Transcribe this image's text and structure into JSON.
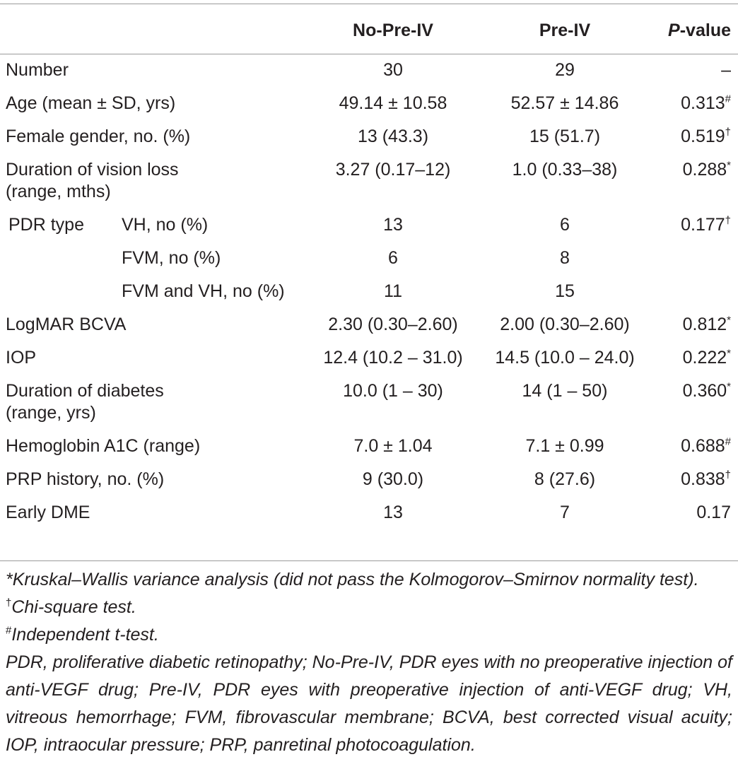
{
  "table": {
    "headers": {
      "col1": "No-Pre-IV",
      "col2": "Pre-IV",
      "col3_italic": "P",
      "col3_rest": "-value"
    },
    "rows": [
      {
        "label": "Number",
        "label2": "",
        "c1": "30",
        "c2": "29",
        "p": "–",
        "sup": ""
      },
      {
        "label": "Age (mean ± SD, yrs)",
        "label2": "",
        "c1": "49.14 ± 10.58",
        "c2": "52.57 ± 14.86",
        "p": "0.313",
        "sup": "#"
      },
      {
        "label": "Female gender, no. (%)",
        "label2": "",
        "c1": "13 (43.3)",
        "c2": "15 (51.7)",
        "p": "0.519",
        "sup": "†"
      },
      {
        "label": "Duration of vision loss",
        "label2": "(range, mths)",
        "c1": "3.27 (0.17–12)",
        "c2": "1.0 (0.33–38)",
        "p": "0.288",
        "sup": "*"
      },
      {
        "label": "PDR type",
        "sublabel": "VH, no (%)",
        "c1": "13",
        "c2": "6",
        "p": "0.177",
        "sup": "†"
      },
      {
        "label": "",
        "sublabel": "FVM, no (%)",
        "c1": "6",
        "c2": "8",
        "p": "",
        "sup": ""
      },
      {
        "label": "",
        "sublabel": "FVM and VH, no (%)",
        "c1": "11",
        "c2": "15",
        "p": "",
        "sup": ""
      },
      {
        "label": "LogMAR BCVA",
        "label2": "",
        "c1": "2.30 (0.30–2.60)",
        "c2": "2.00 (0.30–2.60)",
        "p": "0.812",
        "sup": "*"
      },
      {
        "label": "IOP",
        "label2": "",
        "c1": "12.4 (10.2 – 31.0)",
        "c2": "14.5 (10.0 – 24.0)",
        "p": "0.222",
        "sup": "*"
      },
      {
        "label": "Duration of diabetes",
        "label2": "(range, yrs)",
        "c1": "10.0 (1 – 30)",
        "c2": "14 (1 – 50)",
        "p": "0.360",
        "sup": "*"
      },
      {
        "label": "Hemoglobin A1C (range)",
        "label2": "",
        "c1": "7.0 ± 1.04",
        "c2": "7.1 ± 0.99",
        "p": "0.688",
        "sup": "#"
      },
      {
        "label": "PRP history, no. (%)",
        "label2": "",
        "c1": "9 (30.0)",
        "c2": "8 (27.6)",
        "p": "0.838",
        "sup": "†"
      },
      {
        "label": "Early DME",
        "label2": "",
        "c1": "13",
        "c2": "7",
        "p": "0.17",
        "sup": ""
      }
    ]
  },
  "footnotes": {
    "f1_mark": "*",
    "f1": "Kruskal–Wallis variance analysis (did not pass the Kolmogorov–Smirnov normality test).",
    "f2_mark": "†",
    "f2": "Chi-square test.",
    "f3_mark": "#",
    "f3": "Independent t-test.",
    "abbrev": "PDR, proliferative diabetic retinopathy; No-Pre-IV, PDR eyes with no preoperative injection of anti-VEGF drug; Pre-IV, PDR eyes with preoperative injection of anti-VEGF drug; VH, vitreous hemorrhage; FVM, fibrovascular membrane; BCVA, best corrected visual acuity; IOP, intraocular pressure; PRP, panretinal photocoagulation."
  }
}
